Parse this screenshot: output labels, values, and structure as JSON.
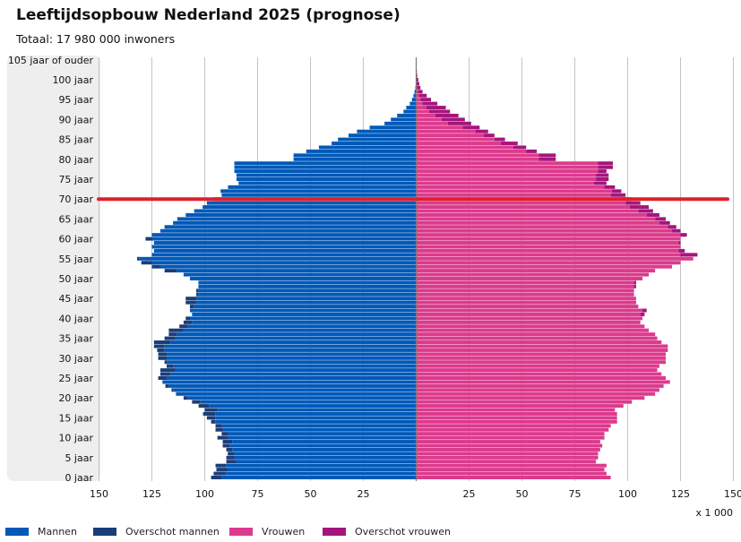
{
  "title": "Leeftijdsopbouw Nederland 2025 (prognose)",
  "subtitle": "Totaal: 17 980 000 inwoners",
  "colors": {
    "mannen": "#0059b8",
    "overschot_mannen": "#1b3d78",
    "vrouwen": "#dc3a8d",
    "overschot_vrouwen": "#a5157c",
    "highlight": "#e0202a"
  },
  "legend": [
    {
      "key": "mannen",
      "label": "Mannen"
    },
    {
      "key": "overschot_mannen",
      "label": "Overschot mannen"
    },
    {
      "key": "vrouwen",
      "label": "Vrouwen"
    },
    {
      "key": "overschot_vrouwen",
      "label": "Overschot vrouwen"
    }
  ],
  "chart_data": {
    "type": "bar",
    "subtype": "population-pyramid",
    "unit_label": "x 1 000",
    "xlim": [
      0,
      150
    ],
    "x_ticks_left": [
      "150",
      "125",
      "100",
      "75",
      "50",
      "25"
    ],
    "x_ticks_right": [
      "25",
      "50",
      "75",
      "100",
      "125",
      "150"
    ],
    "tick_values": [
      150,
      125,
      100,
      75,
      50,
      25
    ],
    "age_labels": [
      {
        "age": 0,
        "label": "0 jaar"
      },
      {
        "age": 5,
        "label": "5 jaar"
      },
      {
        "age": 10,
        "label": "10 jaar"
      },
      {
        "age": 15,
        "label": "15 jaar"
      },
      {
        "age": 20,
        "label": "20 jaar"
      },
      {
        "age": 25,
        "label": "25 jaar"
      },
      {
        "age": 30,
        "label": "30 jaar"
      },
      {
        "age": 35,
        "label": "35 jaar"
      },
      {
        "age": 40,
        "label": "40 jaar"
      },
      {
        "age": 45,
        "label": "45 jaar"
      },
      {
        "age": 50,
        "label": "50 jaar"
      },
      {
        "age": 55,
        "label": "55 jaar"
      },
      {
        "age": 60,
        "label": "60 jaar"
      },
      {
        "age": 65,
        "label": "65 jaar"
      },
      {
        "age": 70,
        "label": "70 jaar"
      },
      {
        "age": 75,
        "label": "75 jaar"
      },
      {
        "age": 80,
        "label": "80 jaar"
      },
      {
        "age": 85,
        "label": "85 jaar"
      },
      {
        "age": 90,
        "label": "90 jaar"
      },
      {
        "age": 95,
        "label": "95 jaar"
      },
      {
        "age": 100,
        "label": "100 jaar"
      },
      {
        "age": 105,
        "label": "105 jaar of ouder"
      }
    ],
    "highlight_age": 70,
    "men": [
      97,
      95.8,
      94.5,
      94.9,
      89.8,
      89.8,
      89.1,
      89.8,
      91.5,
      91.5,
      94,
      92,
      94.9,
      94.9,
      97,
      99,
      100.8,
      100,
      102.9,
      106,
      110,
      113.6,
      115.7,
      118.6,
      120,
      122,
      121,
      121,
      118,
      119,
      122,
      122,
      122.5,
      124,
      124,
      119,
      117,
      117,
      112,
      110,
      109,
      106,
      107,
      107,
      109,
      109,
      104,
      104,
      103,
      103,
      107,
      110,
      119,
      125,
      130,
      132,
      125,
      124,
      125,
      124,
      128,
      125,
      121,
      119,
      115,
      113,
      109,
      105,
      101,
      99,
      96,
      92,
      92.5,
      89,
      84,
      85,
      85,
      86,
      86,
      86,
      58,
      58,
      52,
      46,
      40,
      37,
      32,
      28,
      22,
      15,
      12,
      9,
      6,
      4.7,
      3,
      2,
      1.3,
      0.8,
      0.4,
      0.2,
      0.1,
      0.05,
      0,
      0,
      0,
      0
    ],
    "women": [
      92,
      90,
      89,
      90,
      85,
      86,
      86,
      87,
      88,
      87,
      89,
      89,
      91,
      92,
      95,
      95,
      95,
      94,
      98,
      102,
      108,
      113,
      115,
      117,
      120,
      118,
      116,
      114,
      115,
      118,
      118,
      118,
      119,
      119,
      116,
      114,
      113,
      110,
      108,
      106,
      107,
      108,
      109,
      105,
      104,
      104,
      103,
      103,
      104,
      104,
      107,
      110,
      113,
      121,
      125,
      131,
      133,
      127,
      125,
      125,
      125,
      128,
      125,
      123,
      120,
      118,
      115,
      112,
      110,
      106,
      102,
      99,
      97,
      94,
      90,
      91,
      91,
      90,
      93,
      93,
      66,
      66,
      57,
      52,
      48,
      42,
      37,
      34,
      30,
      26,
      23,
      20,
      16,
      14,
      10,
      7,
      5,
      3,
      2,
      1.5,
      1,
      0.5,
      0.3,
      0.1,
      0.05,
      0.05
    ]
  }
}
